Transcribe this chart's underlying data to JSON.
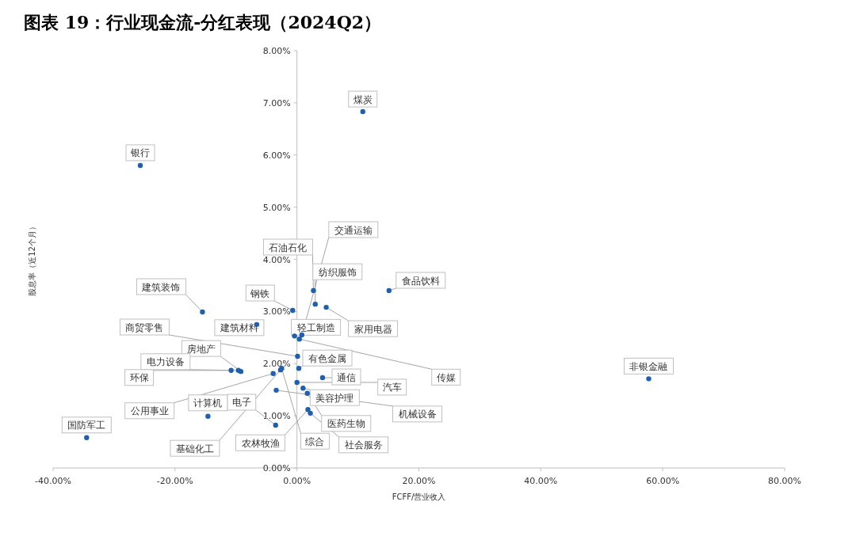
{
  "chart_data": {
    "type": "scatter",
    "title": "图表 19：行业现金流-分红表现（2024Q2）",
    "xlabel": "FCFF/营业收入",
    "ylabel": "股息率（近12个月）",
    "xlim": [
      -40,
      80
    ],
    "ylim": [
      0,
      8
    ],
    "xticks": [
      {
        "value": -40,
        "label": "-40.00%"
      },
      {
        "value": -20,
        "label": "-20.00%"
      },
      {
        "value": 0,
        "label": "0.00%"
      },
      {
        "value": 20,
        "label": "20.00%"
      },
      {
        "value": 40,
        "label": "40.00%"
      },
      {
        "value": 60,
        "label": "60.00%"
      },
      {
        "value": 80,
        "label": "80.00%"
      }
    ],
    "yticks": [
      {
        "value": 0,
        "label": "0.00%"
      },
      {
        "value": 1,
        "label": "1.00%"
      },
      {
        "value": 2,
        "label": "2.00%"
      },
      {
        "value": 3,
        "label": "3.00%"
      },
      {
        "value": 4,
        "label": "4.00%"
      },
      {
        "value": 5,
        "label": "5.00%"
      },
      {
        "value": 6,
        "label": "6.00%"
      },
      {
        "value": 7,
        "label": "7.00%"
      },
      {
        "value": 8,
        "label": "8.00%"
      }
    ],
    "grid": false,
    "marker": "circle",
    "series": [
      {
        "color": "#1f5fb0",
        "x": [
          10.8,
          -25.7,
          57.7,
          15.1,
          2.7,
          3.0,
          4.8,
          -0.7,
          -6.6,
          0.8,
          -0.4,
          0.4,
          -15.5,
          0.1,
          0.3,
          4.2,
          0.0,
          1.0,
          1.7,
          -3.4,
          1.8,
          2.2,
          -3.5,
          -3.9,
          -2.7,
          -2.5,
          -9.2,
          -9.6,
          -10.8,
          -14.6,
          -34.5
        ],
        "values": [
          6.83,
          5.8,
          1.71,
          3.4,
          3.4,
          3.14,
          3.08,
          3.02,
          2.75,
          2.55,
          2.53,
          2.47,
          2.99,
          2.14,
          1.91,
          1.73,
          1.64,
          1.53,
          1.43,
          1.49,
          1.12,
          1.05,
          0.82,
          1.81,
          1.88,
          1.91,
          1.85,
          1.87,
          1.87,
          0.99,
          0.58
        ]
      }
    ],
    "annotations": [
      {
        "text": "煤炭",
        "x": 10.8,
        "y": 6.83
      },
      {
        "text": "银行",
        "x": -25.7,
        "y": 5.8
      },
      {
        "text": "非银金融",
        "x": 57.7,
        "y": 1.71
      },
      {
        "text": "食品饮料",
        "x": 15.1,
        "y": 3.4
      },
      {
        "text": "石油石化",
        "x": 2.7,
        "y": 3.4
      },
      {
        "text": "纺织服饰",
        "x": 3.0,
        "y": 3.14
      },
      {
        "text": "家用电器",
        "x": 4.8,
        "y": 3.08
      },
      {
        "text": "钢铁",
        "x": -0.7,
        "y": 3.02
      },
      {
        "text": "建筑材料",
        "x": -6.6,
        "y": 2.75
      },
      {
        "text": "交通运输",
        "x": 0.8,
        "y": 2.55
      },
      {
        "text": "轻工制造",
        "x": -0.4,
        "y": 2.53
      },
      {
        "text": "传媒",
        "x": 0.4,
        "y": 2.47
      },
      {
        "text": "建筑装饰",
        "x": -15.5,
        "y": 2.99
      },
      {
        "text": "商贸零售",
        "x": 0.1,
        "y": 2.14
      },
      {
        "text": "有色金属",
        "x": 0.3,
        "y": 1.91
      },
      {
        "text": "通信",
        "x": 4.2,
        "y": 1.73
      },
      {
        "text": "汽车",
        "x": 0.0,
        "y": 1.64
      },
      {
        "text": "美容护理",
        "x": 1.0,
        "y": 1.53
      },
      {
        "text": "医药生物",
        "x": 1.7,
        "y": 1.43
      },
      {
        "text": "机械设备",
        "x": -3.4,
        "y": 1.49
      },
      {
        "text": "农林牧渔",
        "x": 1.8,
        "y": 1.12
      },
      {
        "text": "社会服务",
        "x": 2.2,
        "y": 1.05
      },
      {
        "text": "电子",
        "x": -3.5,
        "y": 0.82
      },
      {
        "text": "公用事业",
        "x": -3.9,
        "y": 1.81
      },
      {
        "text": "基础化工",
        "x": -2.7,
        "y": 1.88
      },
      {
        "text": "综合",
        "x": -2.5,
        "y": 1.91
      },
      {
        "text": "房地产",
        "x": -9.2,
        "y": 1.85
      },
      {
        "text": "电力设备",
        "x": -9.6,
        "y": 1.87
      },
      {
        "text": "环保",
        "x": -10.8,
        "y": 1.87
      },
      {
        "text": "计算机",
        "x": -14.6,
        "y": 0.99
      },
      {
        "text": "国防军工",
        "x": -34.5,
        "y": 0.58
      }
    ]
  }
}
